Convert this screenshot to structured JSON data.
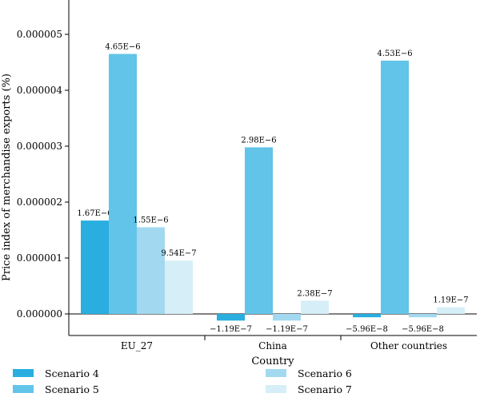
{
  "chart_data": {
    "type": "bar",
    "title": "",
    "xlabel": "Country",
    "ylabel": "Price index of merchandise exports (%)",
    "categories": [
      "EU_27",
      "China",
      "Other countries"
    ],
    "ylim": [
      -3e-07,
      5.6e-06
    ],
    "yticks": [
      0,
      1e-06,
      2e-06,
      3e-06,
      4e-06,
      5e-06
    ],
    "ytick_labels": [
      "0.000000",
      "0.000001",
      "0.000002",
      "0.000003",
      "0.000004",
      "0.000005"
    ],
    "grid": false,
    "legend_position": "bottom",
    "series": [
      {
        "name": "Scenario 4",
        "color": "#29aedf",
        "values": [
          1.67e-06,
          -1.19e-07,
          -5.96e-08
        ],
        "labels": [
          "1.67E−6",
          "−1.19E−7",
          "−5.96E−8"
        ]
      },
      {
        "name": "Scenario 5",
        "color": "#62c4e8",
        "values": [
          4.65e-06,
          2.98e-06,
          4.53e-06
        ],
        "labels": [
          "4.65E−6",
          "2.98E−6",
          "4.53E−6"
        ]
      },
      {
        "name": "Scenario 6",
        "color": "#a2d9f0",
        "values": [
          1.55e-06,
          -1.19e-07,
          -5.96e-08
        ],
        "labels": [
          "1.55E−6",
          "−1.19E−7",
          "−5.96E−8"
        ]
      },
      {
        "name": "Scenario 7",
        "color": "#d6eef7",
        "values": [
          9.54e-07,
          2.38e-07,
          1.19e-07
        ],
        "labels": [
          "9.54E−7",
          "2.38E−7",
          "1.19E−7"
        ]
      }
    ]
  }
}
